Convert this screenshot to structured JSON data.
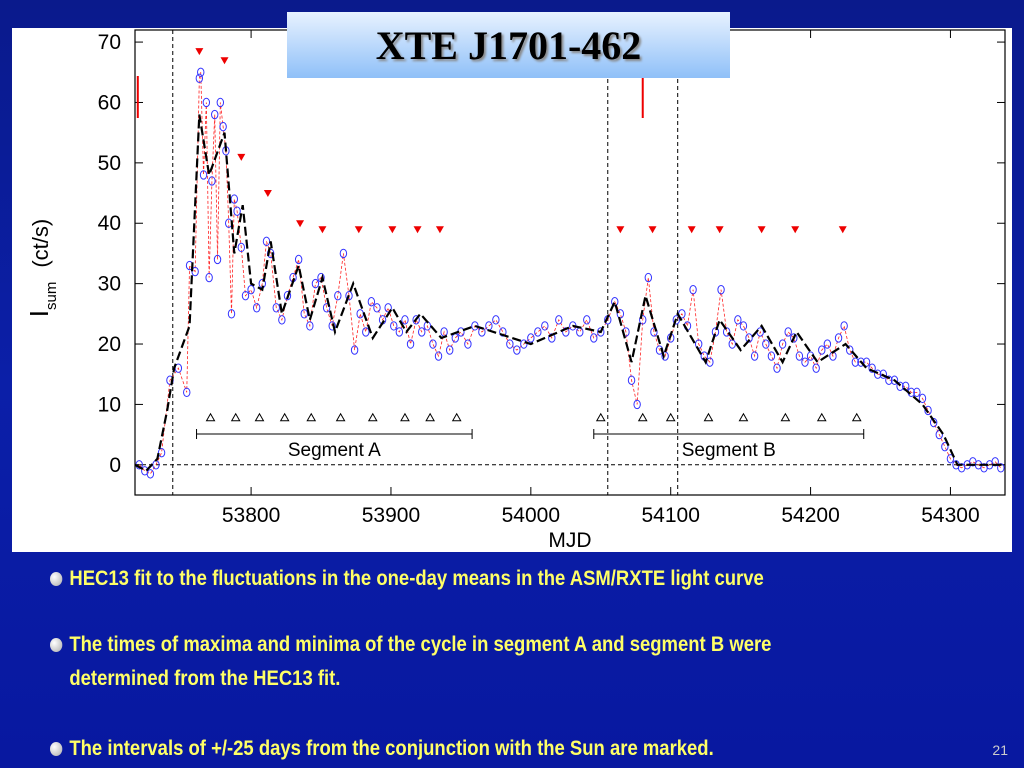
{
  "slide": {
    "page": "21",
    "bullets": [
      [
        "HEC13 fit  to the  fluctuations in the one-day means in the ASM/RXTE light curve"
      ],
      [
        "The times of maxima and  minima of the cycle in segment A and segment B were",
        "determined from the HEC13 fit."
      ],
      [
        "The intervals of +/-25 days from the conjunction with the Sun are marked."
      ]
    ]
  },
  "chart_data": {
    "type": "line",
    "title": "XTE J1701-462",
    "x_label": "MJD",
    "y_label": {
      "main": "I",
      "sub": "sum",
      "unit": "(ct/s)"
    },
    "xlim": [
      53717,
      54339
    ],
    "ylim": [
      -5,
      72
    ],
    "xticks": [
      53800,
      53900,
      54000,
      54100,
      54200,
      54300
    ],
    "yticks": [
      0,
      10,
      20,
      30,
      40,
      50,
      60,
      70
    ],
    "series": [
      {
        "marker": "circle",
        "color": "#3333ff",
        "line_color": "#ff2020",
        "x": [
          53720,
          53724,
          53728,
          53732,
          53736,
          53742,
          53748,
          53754,
          53756,
          53760,
          53763,
          53764,
          53766,
          53768,
          53770,
          53772,
          53774,
          53776,
          53778,
          53780,
          53782,
          53784,
          53786,
          53788,
          53790,
          53793,
          53796,
          53800,
          53804,
          53808,
          53811,
          53814,
          53818,
          53822,
          53826,
          53830,
          53834,
          53838,
          53842,
          53846,
          53850,
          53854,
          53858,
          53862,
          53866,
          53870,
          53874,
          53878,
          53882,
          53886,
          53890,
          53894,
          53898,
          53902,
          53906,
          53910,
          53914,
          53918,
          53922,
          53926,
          53930,
          53934,
          53938,
          53942,
          53946,
          53950,
          53955,
          53960,
          53965,
          53970,
          53975,
          53980,
          53985,
          53990,
          53995,
          54000,
          54005,
          54010,
          54015,
          54020,
          54025,
          54030,
          54035,
          54040,
          54045,
          54050,
          54055,
          54060,
          54064,
          54068,
          54072,
          54076,
          54080,
          54084,
          54088,
          54092,
          54096,
          54100,
          54104,
          54108,
          54112,
          54116,
          54120,
          54124,
          54128,
          54132,
          54136,
          54140,
          54144,
          54148,
          54152,
          54156,
          54160,
          54164,
          54168,
          54172,
          54176,
          54180,
          54184,
          54188,
          54192,
          54196,
          54200,
          54204,
          54208,
          54212,
          54216,
          54220,
          54224,
          54228,
          54232,
          54236,
          54240,
          54244,
          54248,
          54252,
          54256,
          54260,
          54264,
          54268,
          54272,
          54276,
          54280,
          54284,
          54288,
          54292,
          54296,
          54300,
          54304,
          54308,
          54312,
          54316,
          54320,
          54324,
          54328,
          54332,
          54336
        ],
        "values": [
          0,
          -1,
          -1.5,
          0,
          2,
          14,
          16,
          12,
          33,
          32,
          64,
          65,
          48,
          60,
          31,
          47,
          58,
          34,
          60,
          56,
          52,
          40,
          25,
          44,
          42,
          36,
          28,
          29,
          26,
          30,
          37,
          35,
          26,
          24,
          28,
          31,
          34,
          25,
          23,
          30,
          31,
          26,
          23,
          28,
          35,
          28,
          19,
          25,
          22,
          27,
          26,
          24,
          26,
          23,
          22,
          24,
          20,
          24,
          22,
          23,
          20,
          18,
          22,
          19,
          21,
          22,
          20,
          23,
          22,
          23,
          24,
          22,
          20,
          19,
          20,
          21,
          22,
          23,
          21,
          24,
          22,
          23,
          22,
          24,
          21,
          22,
          24,
          27,
          25,
          22,
          14,
          10,
          24,
          31,
          22,
          19,
          18,
          21,
          24,
          25,
          23,
          29,
          20,
          18,
          17,
          22,
          29,
          22,
          20,
          24,
          23,
          21,
          18,
          22,
          20,
          18,
          16,
          20,
          22,
          21,
          18,
          17,
          18,
          16,
          19,
          20,
          18,
          21,
          23,
          19,
          17,
          17,
          17,
          16,
          15,
          15,
          14,
          14,
          13,
          13,
          12,
          12,
          11,
          9,
          7,
          5,
          3,
          1,
          0,
          -0.5,
          0,
          0.5,
          0,
          -0.5,
          0,
          0.5,
          -0.5
        ]
      },
      {
        "marker": "none",
        "color": "#000000",
        "x": [
          53717,
          53725,
          53733,
          53740,
          53745,
          53756,
          53763,
          53770,
          53781,
          53788,
          53794,
          53800,
          53808,
          53814,
          53822,
          53834,
          53842,
          53851,
          53860,
          53873,
          53887,
          53901,
          53911,
          53921,
          53936,
          53960,
          54000,
          54030,
          54050,
          54060,
          54072,
          54082,
          54095,
          54105,
          54115,
          54125,
          54135,
          54150,
          54165,
          54180,
          54190,
          54205,
          54225,
          54240,
          54260,
          54280,
          54295,
          54305,
          54320,
          54339
        ],
        "values": [
          0,
          -1,
          1,
          9,
          16,
          23,
          58,
          48,
          55,
          35,
          43,
          30,
          29,
          37,
          25,
          33,
          24,
          31,
          22,
          30,
          21,
          26,
          22,
          25,
          21,
          23,
          20,
          23,
          22,
          27,
          17,
          28,
          18,
          25,
          21,
          17,
          24,
          19,
          23,
          17,
          22,
          17,
          20,
          16,
          14,
          10,
          5,
          0,
          0,
          0
        ]
      },
      {
        "marker": "down-triangle",
        "color": "#ee0000",
        "x": [
          53763,
          53781,
          53793,
          53812,
          53835,
          53851,
          53877,
          53901,
          53919,
          53935,
          54064,
          54087,
          54115,
          54135,
          54165,
          54189,
          54223
        ],
        "values": [
          68.5,
          67,
          51,
          45,
          40,
          39,
          39,
          39,
          39,
          39,
          39,
          39,
          39,
          39,
          39,
          39,
          39
        ]
      },
      {
        "marker": "up-triangle",
        "color": "#000000",
        "x": [
          53771,
          53789,
          53806,
          53824,
          53843,
          53864,
          53887,
          53910,
          53928,
          53947,
          54050,
          54080,
          54100,
          54127,
          54152,
          54182,
          54208,
          54233
        ],
        "values": [
          7.8,
          7.8,
          7.8,
          7.8,
          7.8,
          7.8,
          7.8,
          7.8,
          7.8,
          7.8,
          7.8,
          7.8,
          7.8,
          7.8,
          7.8,
          7.8,
          7.8,
          7.8
        ]
      }
    ],
    "sun_conjunction_x": [
      53719,
      54080
    ],
    "boundary_x": [
      53744,
      54055,
      54105
    ],
    "segments": [
      {
        "label": "Segment A",
        "start": 53761,
        "end": 53958
      },
      {
        "label": "Segment B",
        "start": 54045,
        "end": 54238
      }
    ]
  }
}
